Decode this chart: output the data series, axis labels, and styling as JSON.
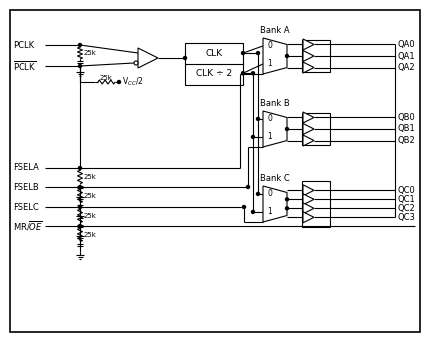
{
  "bg_color": "#ffffff",
  "line_color": "#000000",
  "text_color": "#000000",
  "outputs_A": [
    "QA0",
    "QA1",
    "QA2"
  ],
  "outputs_B": [
    "QB0",
    "QB1",
    "QB2"
  ],
  "outputs_C": [
    "QC0",
    "QC1",
    "QC2",
    "QC3"
  ],
  "clk_label1": "CLK",
  "clk_label2": "CLK ÷ 2",
  "resistor_label": "25k",
  "vcc_label": "V$_{CC}$/2",
  "fsel_labels": [
    "FSELA",
    "FSELB",
    "FSELC"
  ],
  "mr_oe_label": "MR/$\\overline{OE}$"
}
